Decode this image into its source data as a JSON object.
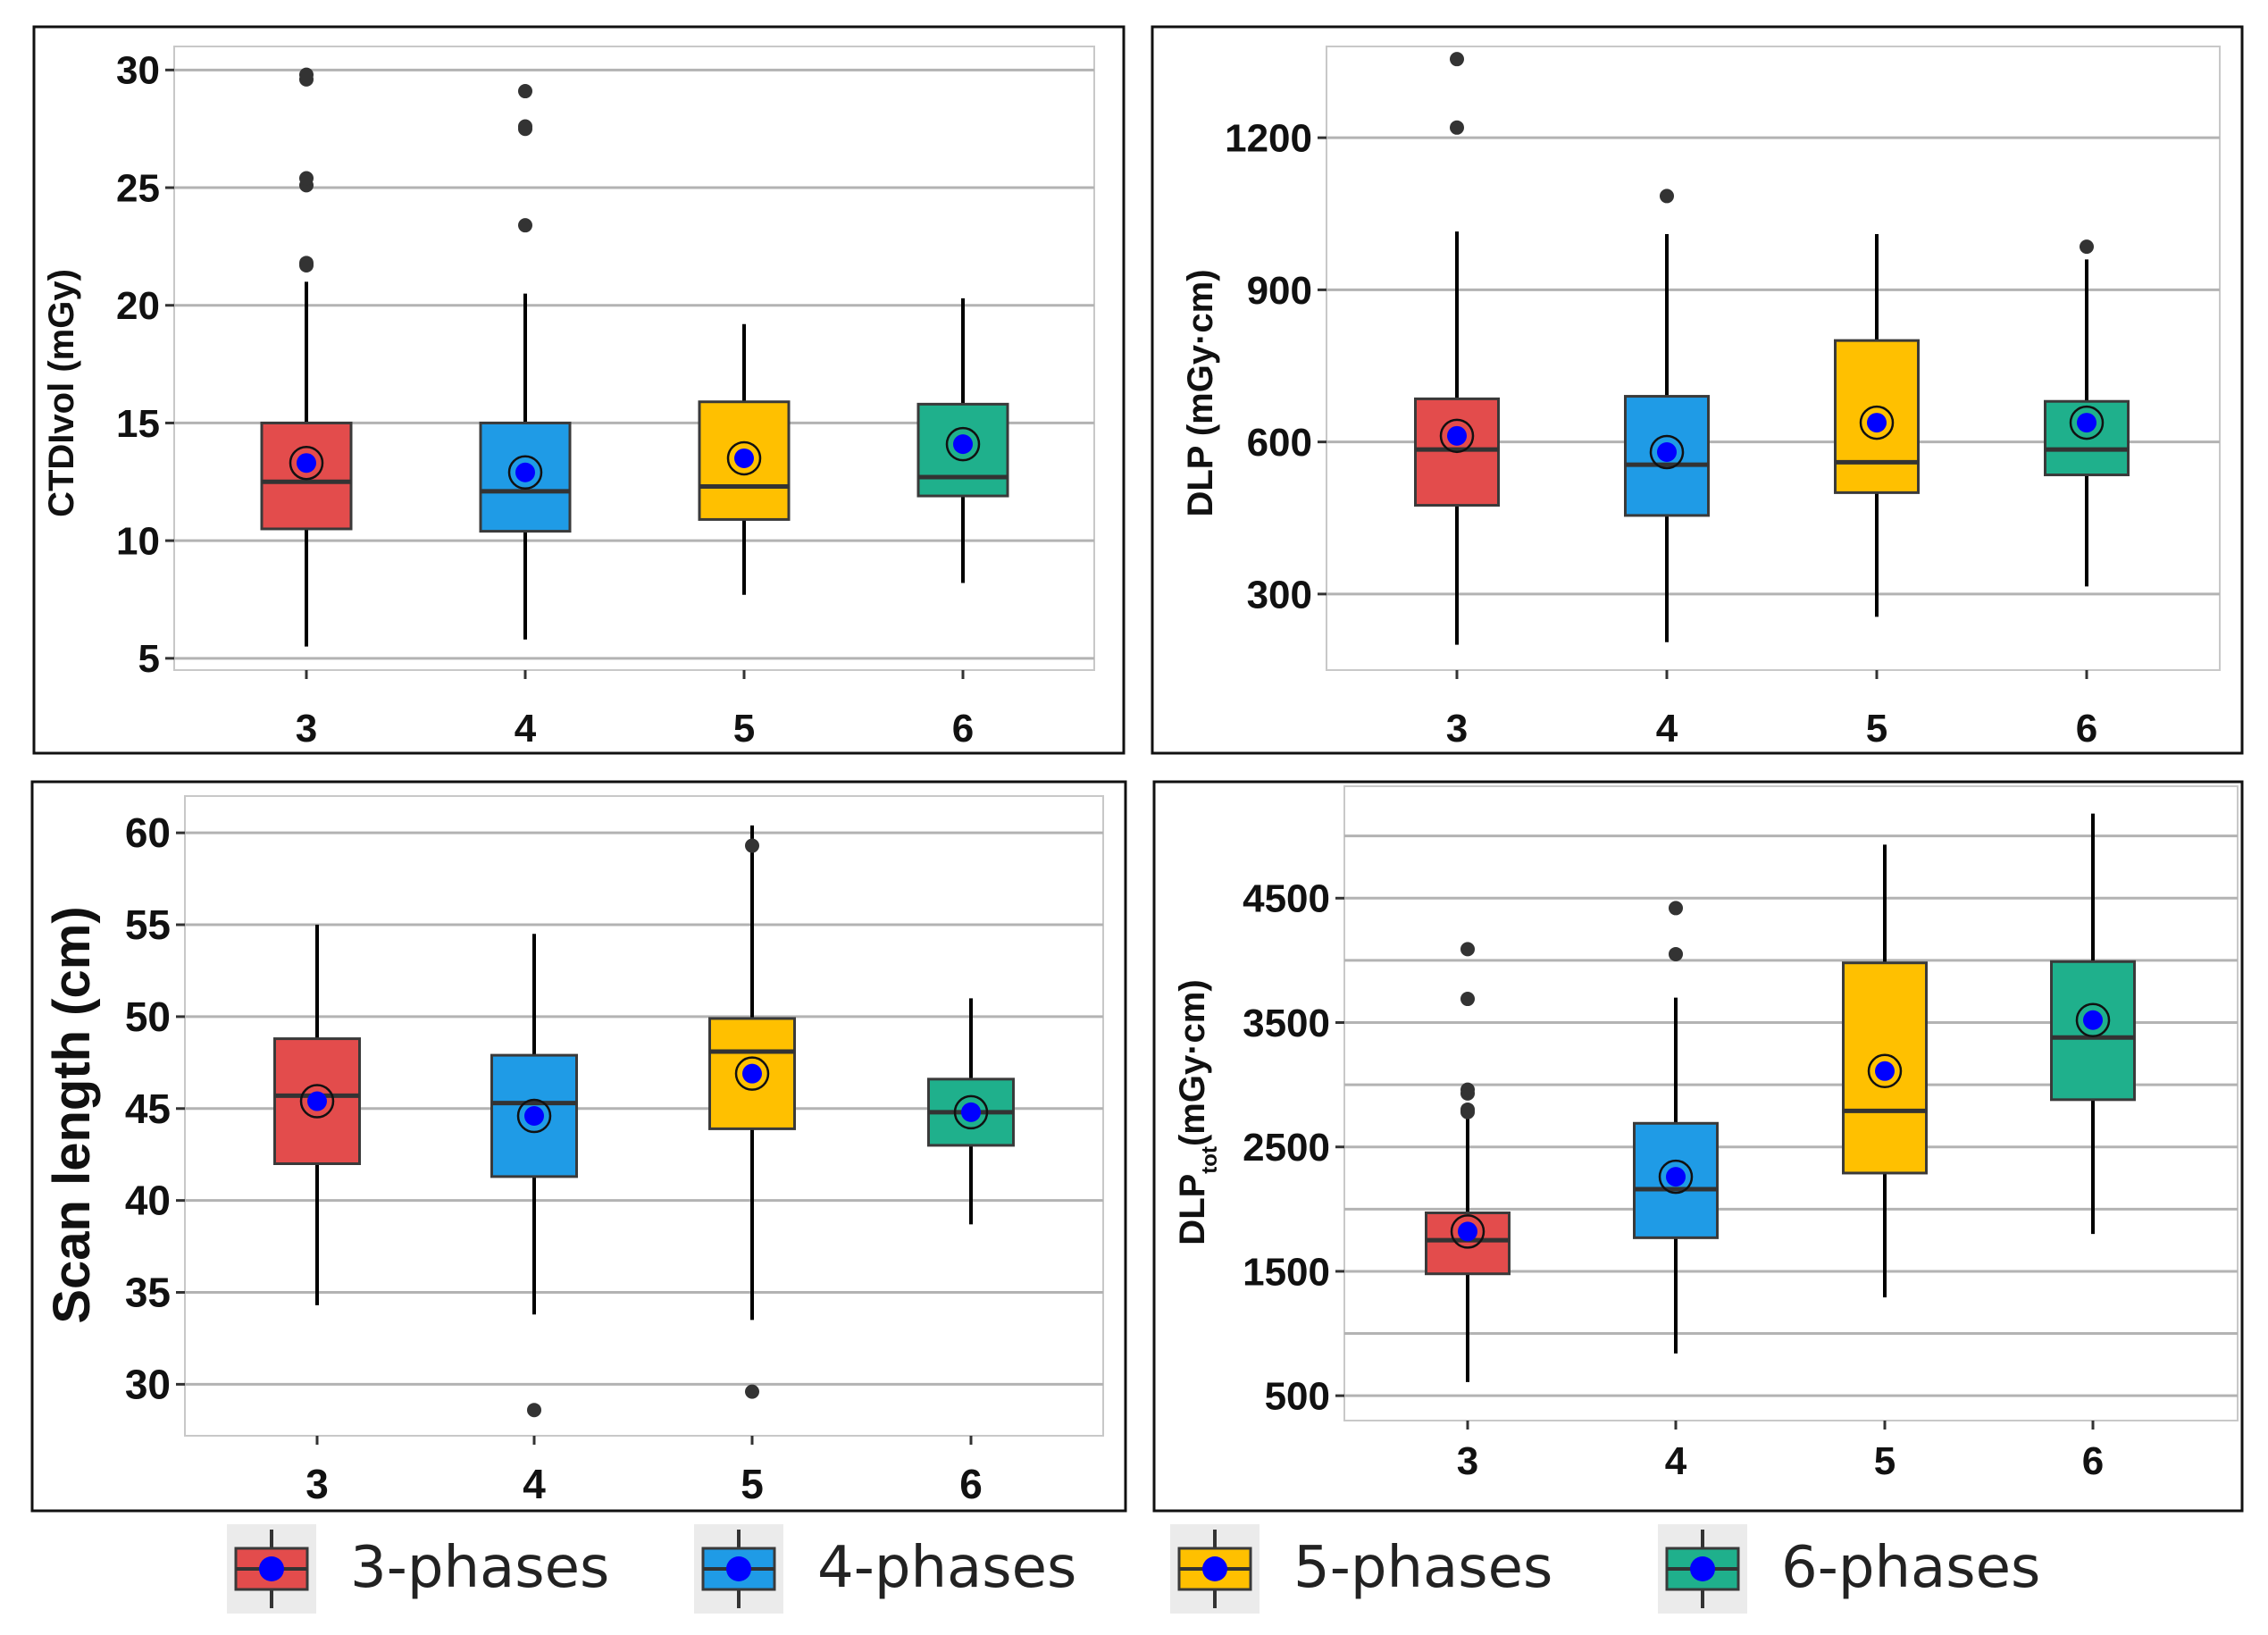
{
  "colors": {
    "g3": "#e34c4c",
    "g4": "#1f9be6",
    "g5": "#ffc000",
    "g6": "#1fb08c",
    "mean": "#0000ff",
    "grid": "#b3b3b3",
    "outlier": "#333333"
  },
  "legend": [
    {
      "label": "3-phases",
      "color": "#e34c4c"
    },
    {
      "label": "4-phases",
      "color": "#1f9be6"
    },
    {
      "label": "5-phases",
      "color": "#ffc000"
    },
    {
      "label": "6-phases",
      "color": "#1fb08c"
    }
  ],
  "chart_data": [
    {
      "type": "box",
      "title": "",
      "xlabel": "",
      "ylabel": "CTDIvol (mGy)",
      "ylim": [
        4.5,
        31
      ],
      "yticks": [
        5,
        10,
        15,
        20,
        25,
        30
      ],
      "ytick_labels": [
        "5",
        "10",
        "15",
        "20",
        "25",
        "30"
      ],
      "categories": [
        "3",
        "4",
        "5",
        "6"
      ],
      "boxes": [
        {
          "q1": 10.5,
          "median": 12.5,
          "q3": 15.0,
          "whisker_low": 5.5,
          "whisker_high": 21.0,
          "mean": 13.3,
          "outliers": [
            21.7,
            21.8,
            25.1,
            25.4,
            29.6,
            29.8
          ]
        },
        {
          "q1": 10.4,
          "median": 12.1,
          "q3": 15.0,
          "whisker_low": 5.8,
          "whisker_high": 20.5,
          "mean": 12.9,
          "outliers": [
            23.4,
            27.5,
            27.6,
            29.1
          ]
        },
        {
          "q1": 10.9,
          "median": 12.3,
          "q3": 15.9,
          "whisker_low": 7.7,
          "whisker_high": 19.2,
          "mean": 13.5,
          "outliers": []
        },
        {
          "q1": 11.9,
          "median": 12.7,
          "q3": 15.8,
          "whisker_low": 8.2,
          "whisker_high": 20.3,
          "mean": 14.1,
          "outliers": []
        }
      ]
    },
    {
      "type": "box",
      "title": "",
      "xlabel": "",
      "ylabel": "DLP (mGy·cm)",
      "ylim": [
        150,
        1380
      ],
      "yticks": [
        300,
        600,
        900,
        1200
      ],
      "ytick_labels": [
        "300",
        "600",
        "900",
        "1200"
      ],
      "categories": [
        "3",
        "4",
        "5",
        "6"
      ],
      "boxes": [
        {
          "q1": 475,
          "median": 585,
          "q3": 685,
          "whisker_low": 200,
          "whisker_high": 1015,
          "mean": 612,
          "outliers": [
            1220,
            1355
          ]
        },
        {
          "q1": 455,
          "median": 555,
          "q3": 690,
          "whisker_low": 205,
          "whisker_high": 1010,
          "mean": 580,
          "outliers": [
            1085
          ]
        },
        {
          "q1": 500,
          "median": 560,
          "q3": 800,
          "whisker_low": 255,
          "whisker_high": 1010,
          "mean": 638,
          "outliers": []
        },
        {
          "q1": 535,
          "median": 585,
          "q3": 680,
          "whisker_low": 315,
          "whisker_high": 960,
          "mean": 638,
          "outliers": [
            985
          ]
        }
      ]
    },
    {
      "type": "box",
      "title": "",
      "xlabel": "",
      "ylabel": "Scan length (cm)",
      "ylim": [
        27.2,
        62
      ],
      "yticks": [
        30,
        35,
        40,
        45,
        50,
        55,
        60
      ],
      "ytick_labels": [
        "30",
        "35",
        "40",
        "45",
        "50",
        "55",
        "60"
      ],
      "categories": [
        "3",
        "4",
        "5",
        "6"
      ],
      "boxes": [
        {
          "q1": 42.0,
          "median": 45.7,
          "q3": 48.8,
          "whisker_low": 34.3,
          "whisker_high": 55.0,
          "mean": 45.4,
          "outliers": []
        },
        {
          "q1": 41.3,
          "median": 45.3,
          "q3": 47.9,
          "whisker_low": 33.8,
          "whisker_high": 54.5,
          "mean": 44.6,
          "outliers": [
            28.6
          ]
        },
        {
          "q1": 43.9,
          "median": 48.1,
          "q3": 49.9,
          "whisker_low": 33.5,
          "whisker_high": 60.4,
          "mean": 46.9,
          "outliers": [
            29.6,
            59.3
          ]
        },
        {
          "q1": 43.0,
          "median": 44.8,
          "q3": 46.6,
          "whisker_low": 38.7,
          "whisker_high": 51.0,
          "mean": 44.8,
          "outliers": []
        }
      ]
    },
    {
      "type": "box",
      "title": "",
      "xlabel": "",
      "ylabel": "DLP",
      "ylabel_sub": "tot",
      "ylabel_suffix": "(mGy·cm)",
      "ylim": [
        300,
        5400
      ],
      "yticks": [
        500,
        1500,
        2500,
        3500,
        4500
      ],
      "ytick_labels": [
        "500",
        "1500",
        "2500",
        "3500",
        "4500"
      ],
      "minor_gridlines": [
        1000,
        2000,
        3000,
        4000,
        5000
      ],
      "categories": [
        "3",
        "4",
        "5",
        "6"
      ],
      "boxes": [
        {
          "q1": 1480,
          "median": 1750,
          "q3": 1970,
          "whisker_low": 610,
          "whisker_high": 2850,
          "mean": 1820,
          "outliers": [
            2780,
            2800,
            2930,
            2960,
            3690,
            4090
          ]
        },
        {
          "q1": 1770,
          "median": 2160,
          "q3": 2690,
          "whisker_low": 840,
          "whisker_high": 3700,
          "mean": 2260,
          "outliers": [
            4050,
            4420
          ]
        },
        {
          "q1": 2290,
          "median": 2790,
          "q3": 3980,
          "whisker_low": 1290,
          "whisker_high": 4930,
          "mean": 3110,
          "outliers": []
        },
        {
          "q1": 2880,
          "median": 3380,
          "q3": 3990,
          "whisker_low": 1800,
          "whisker_high": 5180,
          "mean": 3520,
          "outliers": []
        }
      ]
    }
  ]
}
